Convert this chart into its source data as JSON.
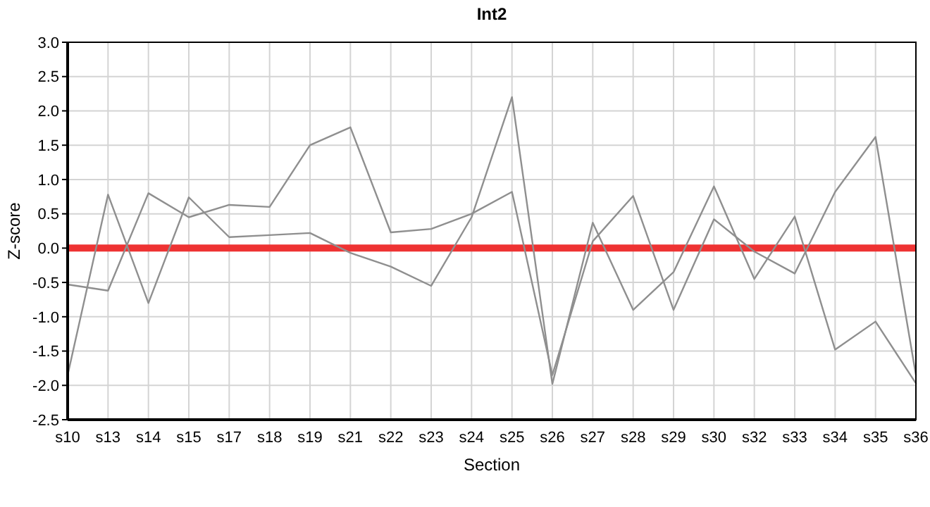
{
  "chart_data": {
    "type": "line",
    "title": "Int2",
    "xlabel": "Section",
    "ylabel": "Z-score",
    "categories": [
      "s10",
      "s13",
      "s14",
      "s15",
      "s17",
      "s18",
      "s19",
      "s21",
      "s22",
      "s23",
      "s24",
      "s25",
      "s26",
      "s27",
      "s28",
      "s29",
      "s30",
      "s32",
      "s33",
      "s34",
      "s35",
      "s36"
    ],
    "series": [
      {
        "color": "#8f8f8f",
        "values": [
          -1.85,
          0.78,
          -0.8,
          0.74,
          0.16,
          0.19,
          0.22,
          -0.07,
          -0.27,
          -0.55,
          0.45,
          2.2,
          -1.98,
          0.37,
          -0.9,
          -0.35,
          0.9,
          -0.45,
          0.46,
          -1.48,
          -1.07,
          -1.97
        ]
      },
      {
        "color": "#8f8f8f",
        "values": [
          -0.53,
          -0.62,
          0.8,
          0.45,
          0.63,
          0.6,
          1.5,
          1.76,
          0.23,
          0.28,
          0.5,
          0.82,
          -1.85,
          0.1,
          0.76,
          -0.9,
          0.42,
          -0.05,
          -0.37,
          0.82,
          1.62,
          -1.85
        ]
      }
    ],
    "ylim": [
      -2.5,
      3
    ],
    "yticks": [
      {
        "value": -2.5,
        "label": "-2.5"
      },
      {
        "value": -2,
        "label": "-2.0"
      },
      {
        "value": -1.5,
        "label": "-1.5"
      },
      {
        "value": -1,
        "label": "-1.0"
      },
      {
        "value": -0.5,
        "label": "-0.5"
      },
      {
        "value": 0,
        "label": "0.0"
      },
      {
        "value": 0.5,
        "label": "0.5"
      },
      {
        "value": 1,
        "label": "1.0"
      },
      {
        "value": 1.5,
        "label": "1.5"
      },
      {
        "value": 2,
        "label": "2.0"
      },
      {
        "value": 2.5,
        "label": "2.5"
      },
      {
        "value": 3,
        "label": "3.0"
      }
    ],
    "ref_lines": [
      {
        "axis": "y",
        "value": 0,
        "color": "#ee3333"
      }
    ],
    "grid": true,
    "marker": "none",
    "line_style": "solid"
  }
}
